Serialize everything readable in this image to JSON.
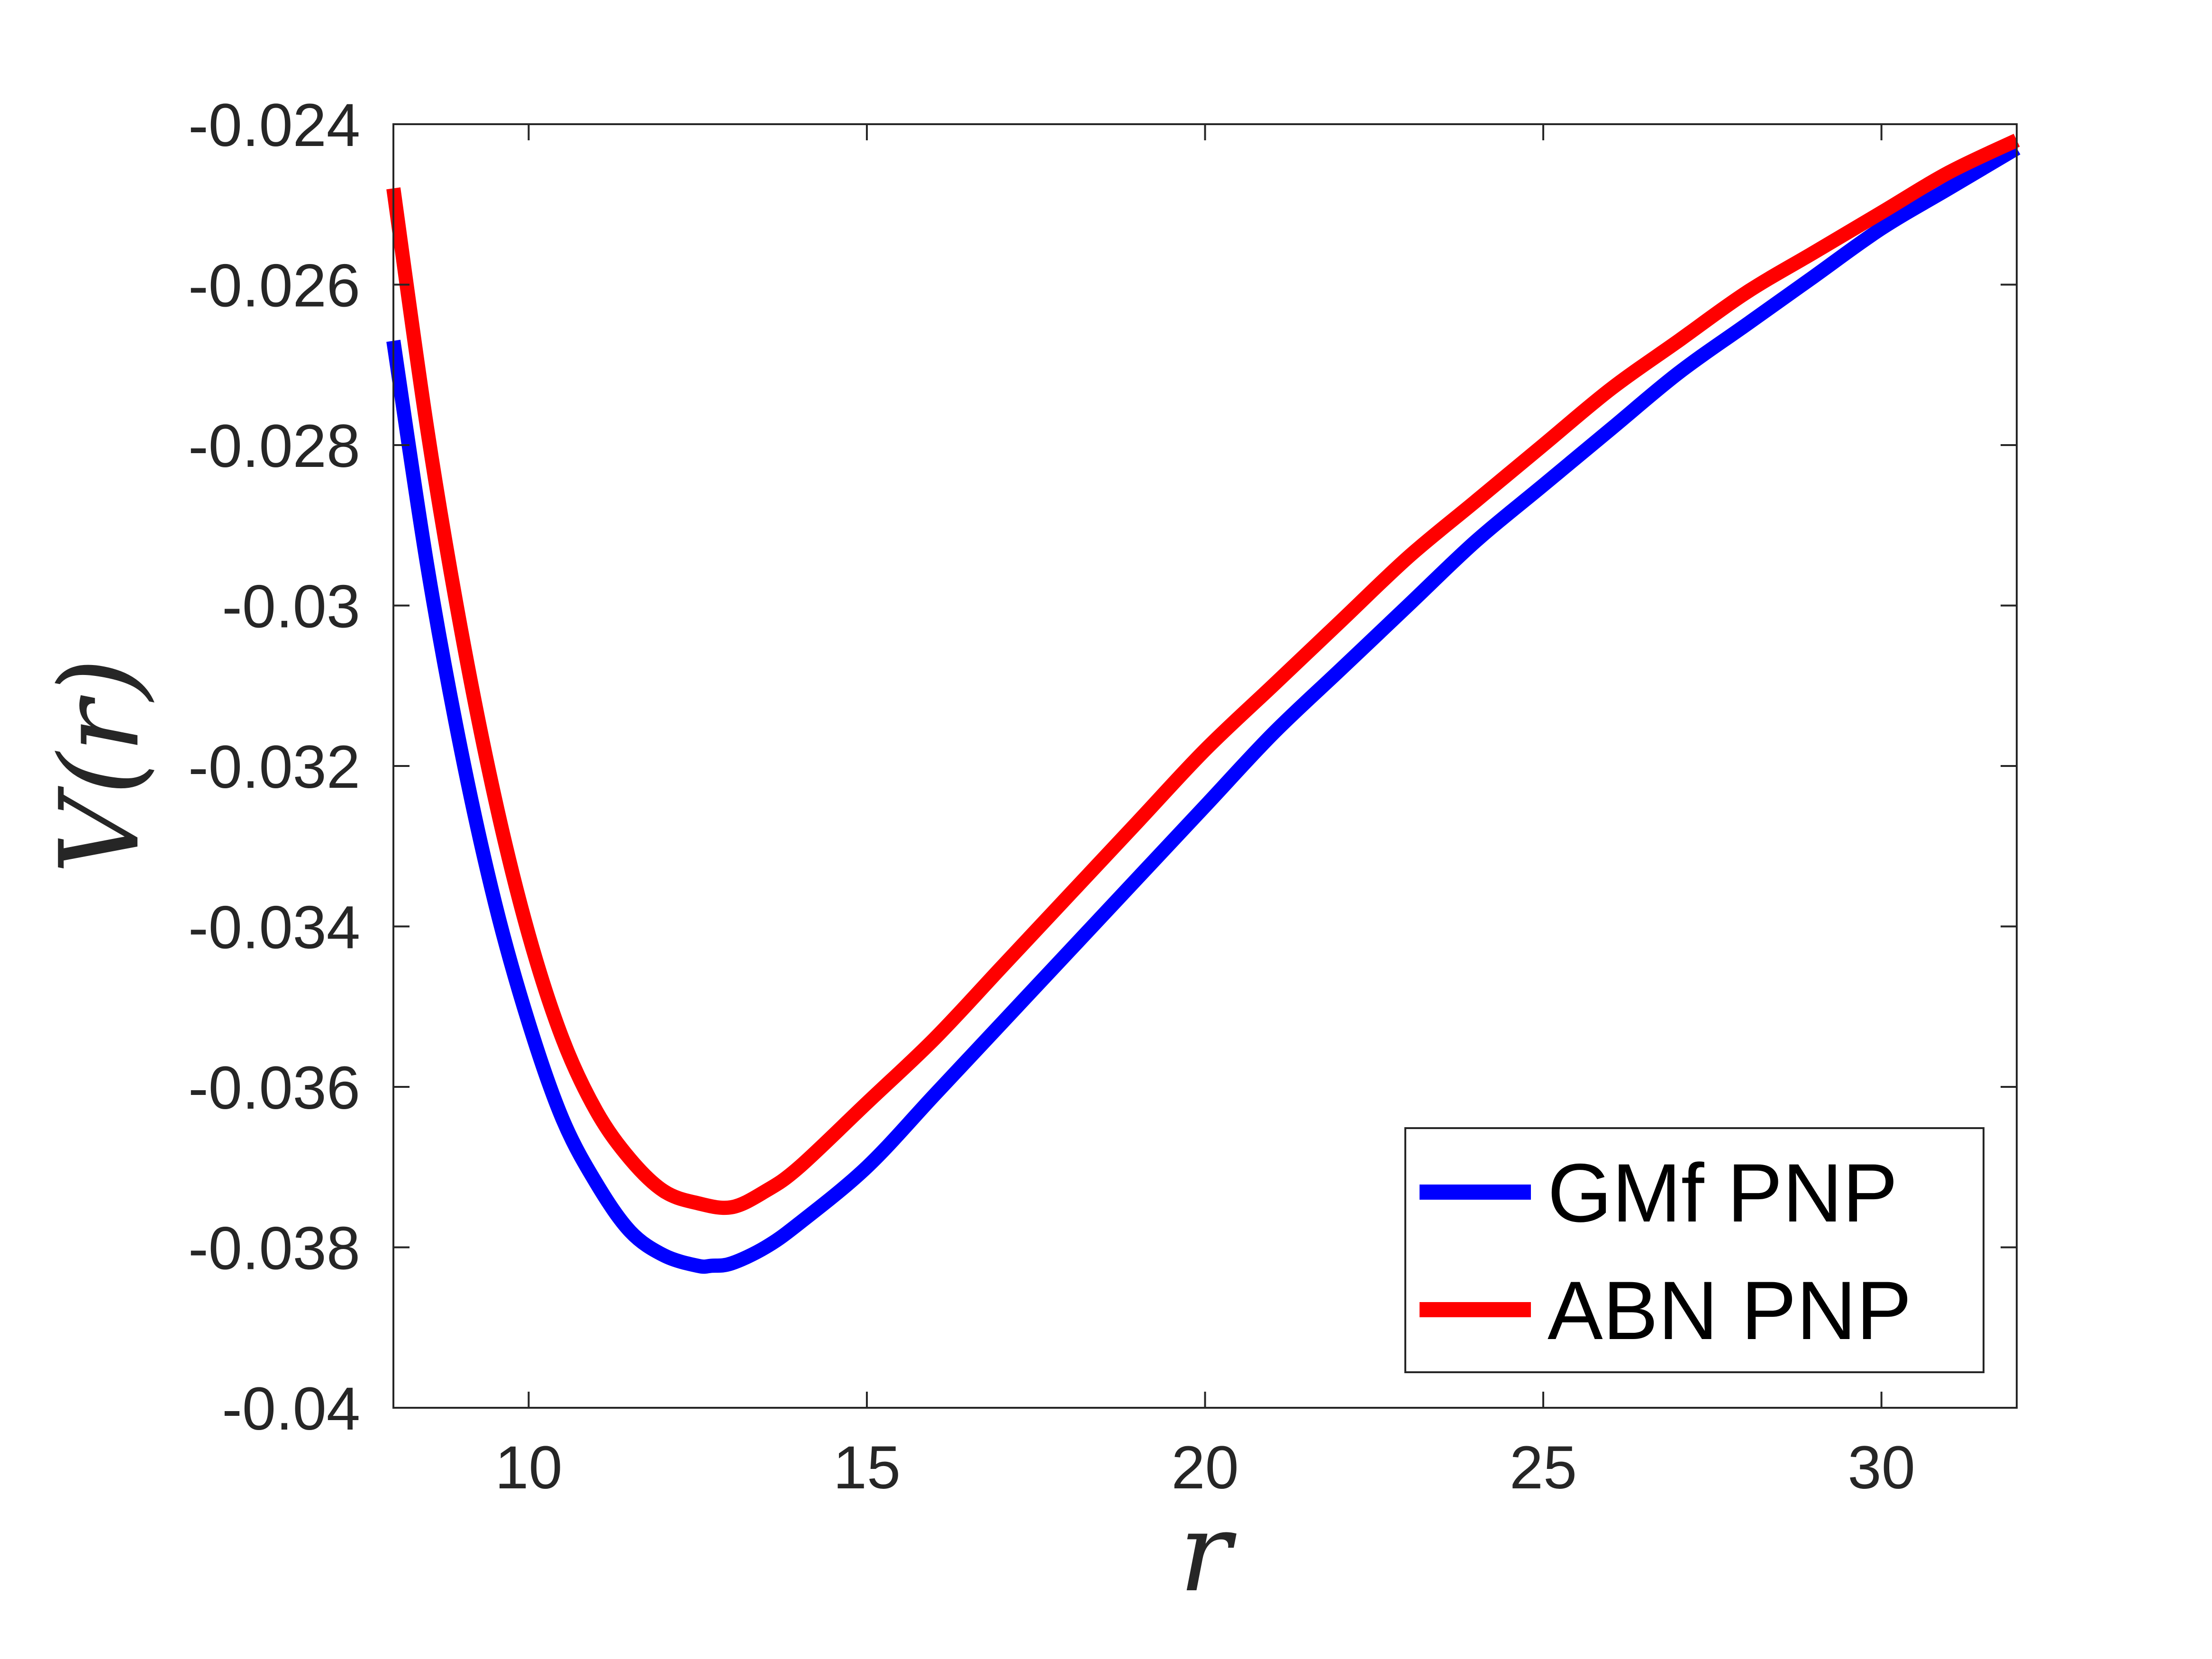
{
  "chart_data": {
    "type": "line",
    "xlabel": "r",
    "ylabel": "V(r)",
    "xlim": [
      8,
      32
    ],
    "ylim": [
      -0.04,
      -0.024
    ],
    "xticks": [
      10,
      15,
      20,
      25,
      30
    ],
    "xtick_labels": [
      "10",
      "15",
      "20",
      "25",
      "30"
    ],
    "yticks": [
      -0.04,
      -0.038,
      -0.036,
      -0.034,
      -0.032,
      -0.03,
      -0.028,
      -0.026,
      -0.024
    ],
    "ytick_labels": [
      "-0.04",
      "-0.038",
      "-0.036",
      "-0.034",
      "-0.032",
      "-0.03",
      "-0.028",
      "-0.026",
      "-0.024"
    ],
    "grid": false,
    "legend_position": "bottom-right",
    "series": [
      {
        "name": "GMf PNP",
        "color": "#0000ff",
        "x": [
          8,
          8.5,
          9,
          9.5,
          10,
          10.5,
          11,
          11.5,
          12,
          12.5,
          12.7,
          13,
          13.5,
          14,
          15,
          16,
          17,
          18,
          19,
          20,
          21,
          22,
          23,
          24,
          25,
          26,
          27,
          28,
          29,
          30,
          31,
          32
        ],
        "y": [
          -0.0267,
          -0.0295,
          -0.0318,
          -0.0337,
          -0.0352,
          -0.0364,
          -0.0372,
          -0.0378,
          -0.0381,
          -0.03823,
          -0.03823,
          -0.0382,
          -0.038,
          -0.0377,
          -0.037,
          -0.0361,
          -0.0352,
          -0.0343,
          -0.0334,
          -0.0325,
          -0.0316,
          -0.0308,
          -0.03,
          -0.0292,
          -0.0285,
          -0.0278,
          -0.0271,
          -0.0265,
          -0.0259,
          -0.0253,
          -0.0248,
          -0.0243
        ]
      },
      {
        "name": "ABN PNP",
        "color": "#ff0000",
        "x": [
          8,
          8.5,
          9,
          9.5,
          10,
          10.5,
          11,
          11.5,
          12,
          12.5,
          13,
          13.5,
          14,
          15,
          16,
          17,
          18,
          19,
          20,
          21,
          22,
          23,
          24,
          25,
          26,
          27,
          28,
          29,
          30,
          31,
          32
        ],
        "y": [
          -0.0248,
          -0.0278,
          -0.0303,
          -0.0324,
          -0.0341,
          -0.0354,
          -0.0363,
          -0.0369,
          -0.0373,
          -0.03745,
          -0.0375,
          -0.0373,
          -0.037,
          -0.0362,
          -0.0354,
          -0.0345,
          -0.0336,
          -0.0327,
          -0.0318,
          -0.031,
          -0.0302,
          -0.0294,
          -0.0287,
          -0.028,
          -0.0273,
          -0.0267,
          -0.0261,
          -0.0256,
          -0.0251,
          -0.0246,
          -0.0242
        ]
      }
    ]
  }
}
